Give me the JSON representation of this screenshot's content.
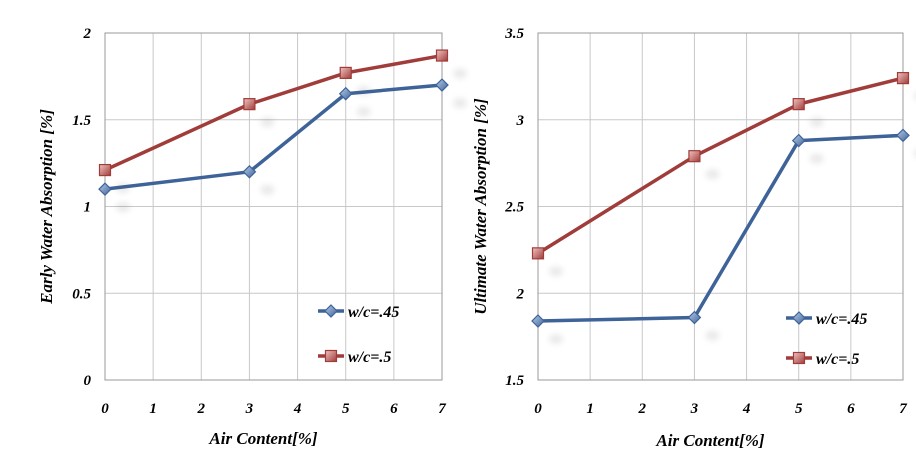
{
  "chart_data": [
    {
      "type": "line",
      "xlabel": "Air Content[%]",
      "ylabel": "Early Water Absorption [%]",
      "xlim": [
        0,
        7
      ],
      "ylim": [
        0,
        2
      ],
      "x_ticks": [
        "0",
        "1",
        "2",
        "3",
        "4",
        "5",
        "6",
        "7"
      ],
      "y_ticks": [
        "0",
        "0.5",
        "1",
        "1.5",
        "2"
      ],
      "grid": true,
      "legend_position": "bottom-right",
      "series": [
        {
          "name": "w/c=.45",
          "color": "#3e6399",
          "marker": "diamond",
          "x": [
            0,
            3,
            5,
            7
          ],
          "y": [
            1.1,
            1.2,
            1.65,
            1.7
          ]
        },
        {
          "name": "w/c=.5",
          "color": "#a03c3a",
          "marker": "square",
          "x": [
            0,
            3,
            5,
            7
          ],
          "y": [
            1.21,
            1.59,
            1.77,
            1.87
          ]
        }
      ]
    },
    {
      "type": "line",
      "xlabel": "Air Content[%]",
      "ylabel": "Ultimate Water Absorption [%]",
      "xlim": [
        0,
        7
      ],
      "ylim": [
        1.5,
        3.5
      ],
      "x_ticks": [
        "0",
        "1",
        "2",
        "3",
        "4",
        "5",
        "6",
        "7"
      ],
      "y_ticks": [
        "1.5",
        "2",
        "2.5",
        "3",
        "3.5"
      ],
      "grid": true,
      "legend_position": "bottom-right",
      "series": [
        {
          "name": "w/c=.45",
          "color": "#3e6399",
          "marker": "diamond",
          "x": [
            0,
            3,
            5,
            7
          ],
          "y": [
            1.84,
            1.86,
            2.88,
            2.91
          ]
        },
        {
          "name": "w/c=.5",
          "color": "#a03c3a",
          "marker": "square",
          "x": [
            0,
            3,
            5,
            7
          ],
          "y": [
            2.23,
            2.79,
            3.09,
            3.24
          ]
        }
      ]
    }
  ]
}
